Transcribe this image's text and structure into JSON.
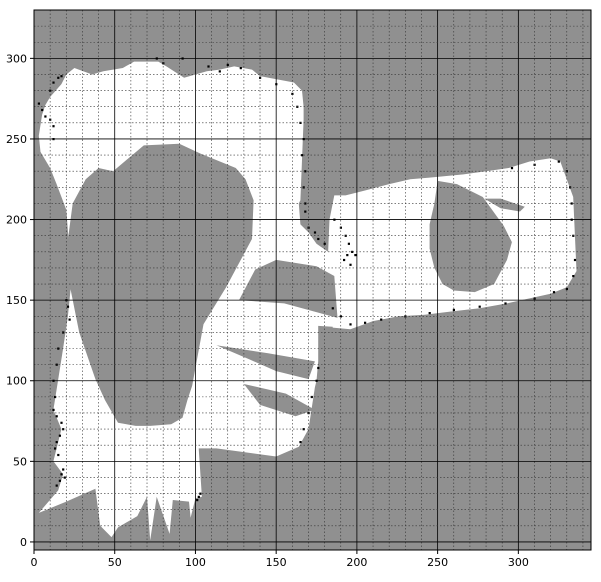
{
  "map": {
    "type": "occupancy-grid",
    "colors": {
      "unknown": "#909090",
      "free": "#ffffff",
      "occupied": "#000000",
      "grid_major": "#000000",
      "grid_minor": "#333333"
    },
    "axes": {
      "x_range": [
        0,
        345
      ],
      "y_range": [
        -5,
        330
      ],
      "x_ticks": [
        0,
        50,
        100,
        150,
        200,
        250,
        300
      ],
      "y_ticks": [
        0,
        50,
        100,
        150,
        200,
        250,
        300
      ],
      "x_tick_labels": [
        "0",
        "50",
        "100",
        "150",
        "200",
        "250",
        "300"
      ],
      "y_tick_labels": [
        "0",
        "50",
        "100",
        "150",
        "200",
        "250",
        "300"
      ],
      "minor_step": 10,
      "grid_major": "solid",
      "grid_minor": "dotted"
    },
    "regions": {
      "mapped_left": [
        [
          3,
          18
        ],
        [
          20,
          25
        ],
        [
          38,
          33
        ],
        [
          41,
          10
        ],
        [
          48,
          3
        ],
        [
          52,
          9
        ],
        [
          64,
          16
        ],
        [
          70,
          28
        ],
        [
          72,
          1
        ],
        [
          76,
          28
        ],
        [
          84,
          5
        ],
        [
          86,
          26
        ],
        [
          96,
          25
        ],
        [
          97,
          15
        ],
        [
          100,
          27
        ],
        [
          104,
          28
        ],
        [
          102,
          58
        ],
        [
          113,
          58
        ],
        [
          150,
          53
        ],
        [
          164,
          59
        ],
        [
          170,
          70
        ],
        [
          174,
          96
        ],
        [
          175,
          100
        ],
        [
          176,
          112
        ],
        [
          176,
          134
        ],
        [
          194,
          133
        ],
        [
          195,
          142
        ],
        [
          185,
          178
        ],
        [
          175,
          185
        ],
        [
          170,
          192
        ],
        [
          165,
          197
        ],
        [
          164,
          210
        ],
        [
          165,
          212
        ],
        [
          167,
          262
        ],
        [
          167,
          270
        ],
        [
          166,
          280
        ],
        [
          161,
          285
        ],
        [
          140,
          289
        ],
        [
          135,
          293
        ],
        [
          124,
          295
        ],
        [
          115,
          293
        ],
        [
          107,
          292
        ],
        [
          93,
          288
        ],
        [
          82,
          295
        ],
        [
          77,
          298
        ],
        [
          62,
          298
        ],
        [
          55,
          294
        ],
        [
          43,
          292
        ],
        [
          36,
          290
        ],
        [
          25,
          294
        ],
        [
          20,
          290
        ],
        [
          17,
          284
        ],
        [
          10,
          276
        ],
        [
          7,
          271
        ],
        [
          5,
          265
        ],
        [
          3,
          252
        ],
        [
          4,
          242
        ],
        [
          10,
          232
        ],
        [
          14,
          222
        ],
        [
          20,
          206
        ],
        [
          22,
          180
        ],
        [
          23,
          160
        ],
        [
          21,
          140
        ],
        [
          18,
          120
        ],
        [
          12,
          82
        ],
        [
          17,
          70
        ],
        [
          12,
          50
        ],
        [
          18,
          42
        ],
        [
          15,
          32
        ],
        [
          3,
          18
        ]
      ],
      "mapped_right": [
        [
          185,
          133
        ],
        [
          196,
          132
        ],
        [
          210,
          137
        ],
        [
          226,
          140
        ],
        [
          242,
          141
        ],
        [
          259,
          143
        ],
        [
          276,
          145
        ],
        [
          293,
          148
        ],
        [
          320,
          154
        ],
        [
          330,
          158
        ],
        [
          336,
          168
        ],
        [
          334,
          214
        ],
        [
          326,
          236
        ],
        [
          320,
          238
        ],
        [
          307,
          236
        ],
        [
          294,
          232
        ],
        [
          280,
          230
        ],
        [
          266,
          228
        ],
        [
          245,
          226
        ],
        [
          233,
          225
        ],
        [
          220,
          222
        ],
        [
          205,
          218
        ],
        [
          193,
          215
        ],
        [
          186,
          215
        ],
        [
          183,
          200
        ],
        [
          182,
          175
        ],
        [
          185,
          160
        ],
        [
          185,
          133
        ]
      ],
      "unknown_islands": [
        [
          [
            49,
            230
          ],
          [
            68,
            246
          ],
          [
            90,
            247
          ],
          [
            103,
            241
          ],
          [
            125,
            232
          ],
          [
            131,
            225
          ],
          [
            136,
            212
          ],
          [
            135,
            188
          ],
          [
            119,
            158
          ],
          [
            105,
            135
          ],
          [
            98,
            97
          ],
          [
            95,
            88
          ],
          [
            92,
            77
          ],
          [
            85,
            73
          ],
          [
            72,
            72
          ],
          [
            63,
            72
          ],
          [
            52,
            74
          ],
          [
            44,
            88
          ],
          [
            38,
            101
          ],
          [
            28,
            130
          ],
          [
            22,
            160
          ],
          [
            20,
            180
          ],
          [
            24,
            210
          ],
          [
            32,
            225
          ],
          [
            40,
            232
          ],
          [
            49,
            230
          ]
        ],
        [
          [
            250,
            224
          ],
          [
            262,
            222
          ],
          [
            278,
            214
          ],
          [
            291,
            196
          ],
          [
            296,
            186
          ],
          [
            293,
            175
          ],
          [
            285,
            160
          ],
          [
            273,
            155
          ],
          [
            260,
            156
          ],
          [
            253,
            160
          ],
          [
            248,
            170
          ],
          [
            245,
            182
          ],
          [
            245,
            197
          ],
          [
            248,
            210
          ],
          [
            250,
            224
          ]
        ],
        [
          [
            279,
            213
          ],
          [
            289,
            213
          ],
          [
            304,
            208
          ],
          [
            301,
            205
          ],
          [
            289,
            207
          ],
          [
            279,
            213
          ]
        ],
        [
          [
            127,
            150
          ],
          [
            155,
            148
          ],
          [
            188,
            139
          ],
          [
            186,
            165
          ],
          [
            175,
            171
          ],
          [
            150,
            175
          ],
          [
            137,
            169
          ],
          [
            127,
            150
          ]
        ],
        [
          [
            113,
            122
          ],
          [
            145,
            117
          ],
          [
            174,
            112
          ],
          [
            170,
            101
          ],
          [
            150,
            106
          ],
          [
            134,
            113
          ],
          [
            113,
            122
          ]
        ],
        [
          [
            130,
            98
          ],
          [
            156,
            92
          ],
          [
            174,
            82
          ],
          [
            162,
            78
          ],
          [
            140,
            85
          ],
          [
            130,
            98
          ]
        ]
      ],
      "obstacle_dots": [
        [
          3,
          272
        ],
        [
          5,
          268
        ],
        [
          7,
          264
        ],
        [
          10,
          280
        ],
        [
          12,
          285
        ],
        [
          15,
          288
        ],
        [
          17,
          289
        ],
        [
          10,
          262
        ],
        [
          12,
          258
        ],
        [
          12,
          250
        ],
        [
          20,
          150
        ],
        [
          21,
          146
        ],
        [
          22,
          138
        ],
        [
          18,
          130
        ],
        [
          15,
          120
        ],
        [
          14,
          110
        ],
        [
          12,
          100
        ],
        [
          13,
          90
        ],
        [
          12,
          82
        ],
        [
          14,
          78
        ],
        [
          17,
          74
        ],
        [
          18,
          70
        ],
        [
          16,
          66
        ],
        [
          14,
          62
        ],
        [
          13,
          58
        ],
        [
          15,
          54
        ],
        [
          76,
          300
        ],
        [
          80,
          297
        ],
        [
          92,
          300
        ],
        [
          108,
          295
        ],
        [
          115,
          292
        ],
        [
          120,
          296
        ],
        [
          128,
          294
        ],
        [
          140,
          288
        ],
        [
          150,
          284
        ],
        [
          160,
          278
        ],
        [
          163,
          270
        ],
        [
          165,
          260
        ],
        [
          167,
          250
        ],
        [
          166,
          240
        ],
        [
          168,
          230
        ],
        [
          167,
          220
        ],
        [
          168,
          210
        ],
        [
          168,
          205
        ],
        [
          170,
          195
        ],
        [
          174,
          192
        ],
        [
          176,
          188
        ],
        [
          180,
          185
        ],
        [
          186,
          200
        ],
        [
          190,
          195
        ],
        [
          193,
          190
        ],
        [
          195,
          185
        ],
        [
          197,
          180
        ],
        [
          199,
          178
        ],
        [
          194,
          178
        ],
        [
          192,
          175
        ],
        [
          196,
          172
        ],
        [
          185,
          145
        ],
        [
          190,
          140
        ],
        [
          196,
          135
        ],
        [
          205,
          136
        ],
        [
          215,
          138
        ],
        [
          230,
          140
        ],
        [
          245,
          142
        ],
        [
          260,
          144
        ],
        [
          276,
          146
        ],
        [
          292,
          148
        ],
        [
          310,
          151
        ],
        [
          322,
          155
        ],
        [
          330,
          157
        ],
        [
          334,
          165
        ],
        [
          335,
          175
        ],
        [
          334,
          190
        ],
        [
          333,
          200
        ],
        [
          333,
          210
        ],
        [
          332,
          220
        ],
        [
          330,
          230
        ],
        [
          325,
          236
        ],
        [
          310,
          234
        ],
        [
          296,
          232
        ],
        [
          165,
          62
        ],
        [
          167,
          70
        ],
        [
          170,
          80
        ],
        [
          172,
          90
        ],
        [
          175,
          100
        ],
        [
          176,
          108
        ],
        [
          102,
          28
        ],
        [
          103,
          30
        ],
        [
          101,
          26
        ],
        [
          18,
          45
        ],
        [
          17,
          42
        ],
        [
          16,
          38
        ],
        [
          14,
          35
        ],
        [
          19,
          40
        ]
      ]
    }
  }
}
